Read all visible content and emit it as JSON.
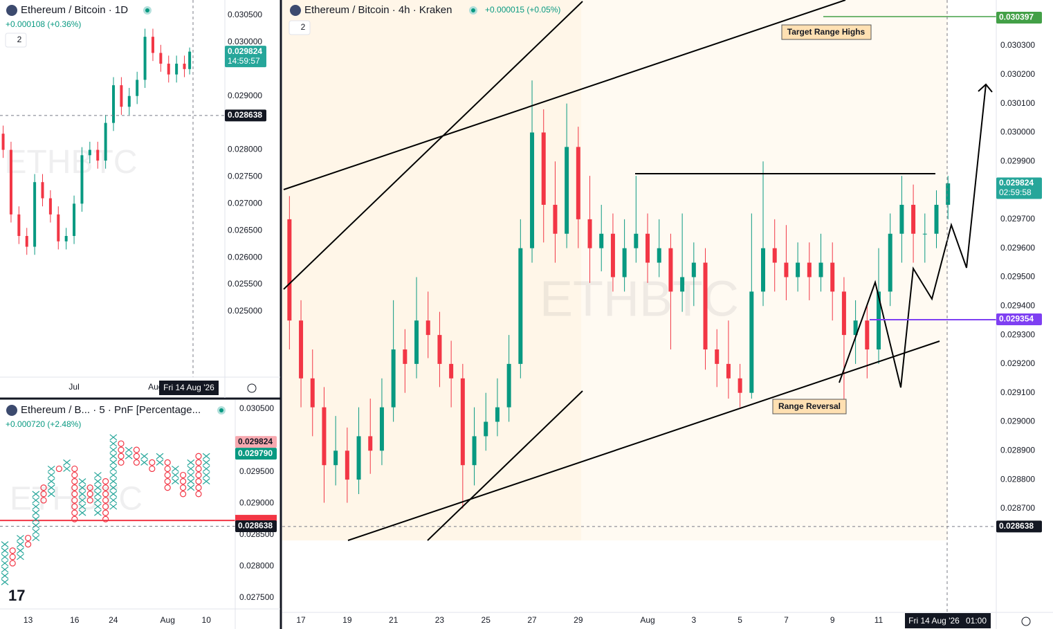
{
  "chart_data": [
    {
      "type": "candlestick",
      "title": "Ethereum / Bitcoin · 4h · Kraken",
      "change": "+0.000015 (+0.05%)",
      "indicators": 2,
      "watermark": "ETHBTC",
      "annotations": [
        "Target Range Highs",
        "Range Reversal"
      ],
      "crosshair": {
        "date": "Fri 14 Aug '26",
        "time": "01:00"
      },
      "up_color": "#089981",
      "down_color": "#f23645",
      "xlim": [
        16.19,
        47.09
      ],
      "ylim": [
        0.028341,
        0.030458
      ],
      "xticks": [
        17,
        19,
        21,
        23,
        25,
        27,
        29,
        {
          "value": 32,
          "label": "Aug"
        },
        {
          "value": 34,
          "label": "3"
        },
        {
          "value": 36,
          "label": "5"
        },
        {
          "value": 38,
          "label": "7"
        },
        {
          "value": 40,
          "label": "9"
        },
        {
          "value": 42,
          "label": "11"
        }
      ],
      "yticks": [
        {
          "value": 0.0287,
          "label": "0.028700"
        },
        {
          "value": 0.0288,
          "label": "0.028800"
        },
        {
          "value": 0.0289,
          "label": "0.028900"
        },
        {
          "value": 0.029,
          "label": "0.029000"
        },
        {
          "value": 0.0291,
          "label": "0.029100"
        },
        {
          "value": 0.0292,
          "label": "0.029200"
        },
        {
          "value": 0.0293,
          "label": "0.029300"
        },
        {
          "value": 0.0294,
          "label": "0.029400"
        },
        {
          "value": 0.0295,
          "label": "0.029500"
        },
        {
          "value": 0.0296,
          "label": "0.029600"
        },
        {
          "value": 0.0297,
          "label": "0.029700"
        },
        {
          "value": 0.0298,
          "label": "0.029800"
        },
        {
          "value": 0.0299,
          "label": "0.029900"
        },
        {
          "value": 0.03,
          "label": "0.030000"
        },
        {
          "value": 0.0301,
          "label": "0.030100"
        },
        {
          "value": 0.0302,
          "label": "0.030200"
        },
        {
          "value": 0.0303,
          "label": "0.030300"
        }
      ],
      "price_labels": [
        {
          "value": 0.030397,
          "color": "#43a047"
        },
        {
          "value": 0.029824,
          "color": "#26a69a",
          "countdown": "02:59:58"
        },
        {
          "value": 0.029354,
          "color": "#7e3ff2"
        },
        {
          "value": 0.028638,
          "color": "#131722",
          "dashed": true
        }
      ],
      "x": [
        16.5,
        17,
        17.5,
        18,
        18.5,
        19,
        19.5,
        20,
        20.5,
        21,
        21.5,
        22,
        22.5,
        23,
        23.5,
        24,
        24.5,
        25,
        25.5,
        26,
        26.5,
        27,
        27.5,
        28,
        28.5,
        29,
        29.5,
        30,
        30.5,
        31,
        31.5,
        32,
        32.5,
        33,
        33.5,
        34,
        34.5,
        35,
        35.5,
        36,
        36.5,
        37,
        37.5,
        38,
        38.5,
        39,
        39.5,
        40,
        40.5,
        41,
        41.5,
        42,
        42.5,
        43,
        43.5,
        44,
        44.5,
        45
      ],
      "open": [
        0.0297,
        0.02935,
        0.02915,
        0.02905,
        0.02885,
        0.0289,
        0.0288,
        0.02895,
        0.0289,
        0.02905,
        0.02925,
        0.0292,
        0.02935,
        0.0293,
        0.0292,
        0.02915,
        0.02885,
        0.02895,
        0.029,
        0.02905,
        0.0292,
        0.0296,
        0.03,
        0.02975,
        0.02965,
        0.02995,
        0.0297,
        0.0296,
        0.02965,
        0.0295,
        0.0296,
        0.02965,
        0.02955,
        0.0296,
        0.02945,
        0.0295,
        0.02955,
        0.02925,
        0.0292,
        0.02915,
        0.0291,
        0.02945,
        0.0296,
        0.02955,
        0.0295,
        0.02955,
        0.0295,
        0.02955,
        0.02945,
        0.0293,
        0.02935,
        0.02925,
        0.02945,
        0.02965,
        0.02975,
        0.02965,
        0.02965,
        0.02975
      ],
      "high": [
        0.02978,
        0.02942,
        0.02925,
        0.02912,
        0.02902,
        0.02898,
        0.02905,
        0.02908,
        0.02915,
        0.02942,
        0.02932,
        0.0295,
        0.02945,
        0.02938,
        0.02928,
        0.0292,
        0.02905,
        0.0291,
        0.02915,
        0.0293,
        0.0297,
        0.03018,
        0.03008,
        0.0299,
        0.0301,
        0.03002,
        0.02985,
        0.02975,
        0.02972,
        0.0297,
        0.02985,
        0.02972,
        0.0297,
        0.02965,
        0.02972,
        0.02962,
        0.0296,
        0.02932,
        0.02935,
        0.0292,
        0.02972,
        0.0299,
        0.0297,
        0.02968,
        0.02962,
        0.02962,
        0.02965,
        0.02962,
        0.0295,
        0.02942,
        0.0294,
        0.0296,
        0.02972,
        0.02985,
        0.02982,
        0.02972,
        0.0298,
        0.02985
      ],
      "low": [
        0.02925,
        0.02905,
        0.02895,
        0.02872,
        0.02878,
        0.02872,
        0.02875,
        0.02882,
        0.02885,
        0.029,
        0.0291,
        0.02915,
        0.02922,
        0.02912,
        0.02905,
        0.0287,
        0.02878,
        0.0289,
        0.02895,
        0.029,
        0.02915,
        0.02955,
        0.02962,
        0.02955,
        0.0296,
        0.0296,
        0.02948,
        0.02952,
        0.02945,
        0.02945,
        0.02955,
        0.02948,
        0.0295,
        0.02925,
        0.02938,
        0.0294,
        0.02918,
        0.02912,
        0.02908,
        0.02905,
        0.02908,
        0.0294,
        0.02945,
        0.02942,
        0.02945,
        0.02942,
        0.02945,
        0.02935,
        0.02905,
        0.0292,
        0.02915,
        0.0292,
        0.0294,
        0.02955,
        0.02955,
        0.02955,
        0.0296,
        0.0297
      ],
      "close": [
        0.02935,
        0.02915,
        0.02905,
        0.02885,
        0.0289,
        0.0288,
        0.02895,
        0.0289,
        0.02905,
        0.02925,
        0.0292,
        0.02935,
        0.0293,
        0.0292,
        0.02915,
        0.02885,
        0.02895,
        0.029,
        0.02905,
        0.0292,
        0.0296,
        0.03,
        0.02975,
        0.02965,
        0.02995,
        0.0297,
        0.0296,
        0.02965,
        0.0295,
        0.0296,
        0.02965,
        0.02955,
        0.0296,
        0.02945,
        0.0295,
        0.02955,
        0.02925,
        0.0292,
        0.02915,
        0.0291,
        0.02945,
        0.0296,
        0.02955,
        0.0295,
        0.02955,
        0.0295,
        0.02955,
        0.02945,
        0.0293,
        0.02935,
        0.02925,
        0.02945,
        0.02965,
        0.02975,
        0.02965,
        0.02965,
        0.02975,
        0.029824
      ]
    },
    {
      "type": "candlestick",
      "title": "Ethereum / Bitcoin · 1D",
      "change": "+0.000108 (+0.36%)",
      "indicators": 2,
      "watermark": "ETHBTC",
      "crosshair": {
        "date": "Fri 14 Aug '26"
      },
      "up_color": "#089981",
      "down_color": "#f23645",
      "xlim": [
        -27.2,
        58.4
      ],
      "ylim": [
        0.023778,
        0.030783
      ],
      "xticks": [
        {
          "value": 1,
          "label": "Jul"
        },
        {
          "value": 32,
          "label": "Aug"
        }
      ],
      "yticks": [
        {
          "value": 0.025,
          "label": "0.025000"
        },
        {
          "value": 0.0255,
          "label": "0.025500"
        },
        {
          "value": 0.026,
          "label": "0.026000"
        },
        {
          "value": 0.0265,
          "label": "0.026500"
        },
        {
          "value": 0.027,
          "label": "0.027000"
        },
        {
          "value": 0.0275,
          "label": "0.027500"
        },
        {
          "value": 0.028,
          "label": "0.028000"
        },
        {
          "value": 0.029,
          "label": "0.029000"
        },
        {
          "value": 0.03,
          "label": "0.030000"
        },
        {
          "value": 0.0305,
          "label": "0.030500"
        }
      ],
      "price_labels": [
        {
          "value": 0.029824,
          "color": "#26a69a",
          "countdown": "14:59:57"
        },
        {
          "value": 0.028638,
          "color": "#131722",
          "dashed": true
        }
      ],
      "x": [
        -26,
        -23,
        -20,
        -17,
        -14,
        -11,
        -8,
        -5,
        -2,
        1,
        4,
        7,
        10,
        13,
        16,
        19,
        22,
        25,
        28,
        31,
        34,
        37,
        40,
        43,
        45
      ],
      "open": [
        0.0283,
        0.028,
        0.0268,
        0.0264,
        0.0262,
        0.0274,
        0.0271,
        0.0268,
        0.0263,
        0.0264,
        0.027,
        0.0279,
        0.028,
        0.0278,
        0.0285,
        0.0292,
        0.0288,
        0.029,
        0.0293,
        0.0301,
        0.0298,
        0.0296,
        0.0294,
        0.0296,
        0.0295
      ],
      "high": [
        0.02845,
        0.02815,
        0.02695,
        0.02655,
        0.02755,
        0.02755,
        0.02725,
        0.02695,
        0.02655,
        0.02715,
        0.02805,
        0.02815,
        0.02815,
        0.02865,
        0.02935,
        0.02935,
        0.02915,
        0.02945,
        0.03025,
        0.03025,
        0.02995,
        0.02975,
        0.02975,
        0.02975,
        0.0299
      ],
      "low": [
        0.02785,
        0.02665,
        0.02625,
        0.02605,
        0.02605,
        0.02695,
        0.02665,
        0.02615,
        0.02615,
        0.02625,
        0.02685,
        0.02775,
        0.02765,
        0.02765,
        0.02835,
        0.02865,
        0.02865,
        0.02885,
        0.02915,
        0.02965,
        0.02945,
        0.02925,
        0.02925,
        0.02935,
        0.0294
      ],
      "close": [
        0.028,
        0.0268,
        0.0264,
        0.0262,
        0.0274,
        0.0271,
        0.0268,
        0.0263,
        0.0264,
        0.027,
        0.0279,
        0.028,
        0.0278,
        0.0285,
        0.0292,
        0.0288,
        0.029,
        0.0293,
        0.0301,
        0.0298,
        0.0296,
        0.0294,
        0.0296,
        0.0295,
        0.029824
      ]
    },
    {
      "type": "pnf",
      "title": "Ethereum / B... · 5 · PnF [Percentage...",
      "change": "+0.000720 (+2.48%)",
      "watermark": "ETHBTC",
      "x_color": "#26a69a",
      "o_color": "#f23645",
      "alert_line": {
        "value": 0.02873,
        "color": "#f23645"
      },
      "ylim": [
        0.027324,
        0.030643
      ],
      "yticks": [
        {
          "value": 0.0275,
          "label": "0.027500"
        },
        {
          "value": 0.028,
          "label": "0.028000"
        },
        {
          "value": 0.0285,
          "label": "0.028500"
        },
        {
          "value": 0.029,
          "label": "0.029000"
        },
        {
          "value": 0.0295,
          "label": "0.029500"
        },
        {
          "value": 0.0305,
          "label": "0.030500"
        }
      ],
      "price_labels": [
        {
          "value": 0.029824,
          "color": "#f7a9b0"
        },
        {
          "value": 0.02979,
          "label": "0.029790",
          "color": "#089981"
        },
        {
          "value": 0.028638,
          "color": "#131722",
          "dashed": true
        }
      ],
      "categories": [
        null,
        null,
        null,
        "13",
        null,
        null,
        null,
        null,
        null,
        "16",
        null,
        null,
        null,
        null,
        "24",
        null,
        null,
        null,
        null,
        null,
        null,
        "Aug",
        null,
        null,
        null,
        null,
        "10"
      ],
      "kinds": [
        "X",
        "O",
        "X",
        "O",
        "X",
        "O",
        "X",
        "O",
        "X",
        "O",
        "X",
        "O",
        "X",
        "O",
        "X",
        "O",
        "X",
        "O",
        "X",
        "O",
        "X",
        "O",
        "X",
        "O",
        "X",
        "O",
        "X"
      ],
      "low": [
        0.0277,
        0.028,
        0.0281,
        0.0283,
        0.0284,
        0.029,
        0.0291,
        0.0295,
        0.0295,
        0.0287,
        0.0288,
        0.029,
        0.0288,
        0.0287,
        0.0289,
        0.0296,
        0.0297,
        0.0296,
        0.0296,
        0.0295,
        0.0296,
        0.0292,
        0.0293,
        0.0291,
        0.0292,
        0.0291,
        0.0293
      ],
      "high": [
        0.0284,
        0.0283,
        0.0285,
        0.0285,
        0.0292,
        0.0293,
        0.0296,
        0.0296,
        0.0297,
        0.0296,
        0.0294,
        0.0293,
        0.0295,
        0.0294,
        0.0301,
        0.03,
        0.0299,
        0.0299,
        0.0298,
        0.0297,
        0.0298,
        0.0297,
        0.0296,
        0.0295,
        0.0297,
        0.0298,
        0.0298
      ]
    }
  ]
}
